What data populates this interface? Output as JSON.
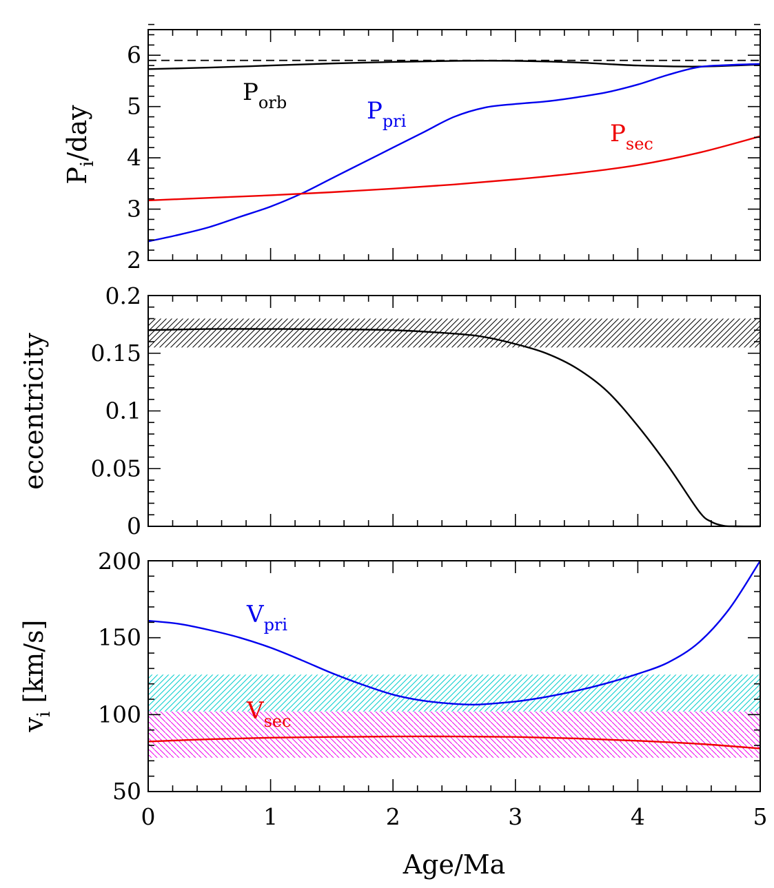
{
  "chart_data": [
    {
      "id": "period",
      "type": "line",
      "xlabel": "Age/Ma",
      "ylabel": {
        "main": "P",
        "sub": "i",
        "rest": "/day"
      },
      "xlim": [
        0,
        5
      ],
      "ylim": [
        2,
        6.5
      ],
      "xticks": [
        0,
        1,
        2,
        3,
        4,
        5
      ],
      "xtick_labels": [
        "0",
        "1",
        "2",
        "3",
        "4",
        "5"
      ],
      "yticks": [
        2,
        3,
        4,
        5,
        6
      ],
      "ytick_labels": [
        "2",
        "3",
        "4",
        "5",
        "6"
      ],
      "hlines": [
        {
          "y": 5.9,
          "style": "dashed",
          "color": "#000000"
        }
      ],
      "series": [
        {
          "name": "P_orb",
          "color": "#000000",
          "label": {
            "main": "P",
            "sub": "orb"
          },
          "x": [
            0,
            0.5,
            1,
            1.5,
            2,
            2.5,
            3,
            3.5,
            4,
            4.5,
            5
          ],
          "y": [
            5.73,
            5.76,
            5.8,
            5.84,
            5.87,
            5.89,
            5.89,
            5.86,
            5.8,
            5.78,
            5.82
          ]
        },
        {
          "name": "P_pri",
          "color": "#0000ee",
          "label": {
            "main": "P",
            "sub": "pri"
          },
          "x": [
            0,
            0.25,
            0.5,
            0.75,
            1,
            1.25,
            1.5,
            1.75,
            2,
            2.25,
            2.5,
            2.75,
            3,
            3.25,
            3.5,
            3.75,
            4,
            4.25,
            4.5,
            4.75,
            5
          ],
          "y": [
            2.37,
            2.5,
            2.65,
            2.85,
            3.05,
            3.3,
            3.6,
            3.9,
            4.2,
            4.5,
            4.8,
            4.98,
            5.05,
            5.1,
            5.18,
            5.28,
            5.43,
            5.62,
            5.77,
            5.81,
            5.83
          ]
        },
        {
          "name": "P_sec",
          "color": "#ee0000",
          "label": {
            "main": "P",
            "sub": "sec"
          },
          "x": [
            0,
            0.5,
            1,
            1.5,
            2,
            2.5,
            3,
            3.5,
            4,
            4.5,
            5
          ],
          "y": [
            3.17,
            3.22,
            3.27,
            3.33,
            3.4,
            3.48,
            3.58,
            3.7,
            3.86,
            4.1,
            4.42
          ]
        }
      ]
    },
    {
      "id": "eccentricity",
      "type": "line",
      "xlabel": "Age/Ma",
      "ylabel": {
        "main": "eccentricity"
      },
      "xlim": [
        0,
        5
      ],
      "ylim": [
        0,
        0.2
      ],
      "xticks": [
        0,
        1,
        2,
        3,
        4,
        5
      ],
      "xtick_labels": [
        "0",
        "1",
        "2",
        "3",
        "4",
        "5"
      ],
      "yticks": [
        0,
        0.05,
        0.1,
        0.15,
        0.2
      ],
      "ytick_labels": [
        "0",
        "0.05",
        "0.1",
        "0.15",
        "0.2"
      ],
      "bands": [
        {
          "y0": 0.155,
          "y1": 0.18,
          "color": "#000000",
          "hatch": "diagonal"
        }
      ],
      "series": [
        {
          "name": "eccentricity",
          "color": "#000000",
          "x": [
            0,
            0.5,
            1,
            1.5,
            2,
            2.5,
            2.75,
            3,
            3.25,
            3.5,
            3.75,
            4,
            4.25,
            4.5,
            4.6,
            4.7,
            4.8,
            5
          ],
          "y": [
            0.17,
            0.171,
            0.171,
            0.1708,
            0.17,
            0.167,
            0.164,
            0.158,
            0.15,
            0.137,
            0.117,
            0.087,
            0.052,
            0.013,
            0.004,
            0.0005,
            0,
            0
          ]
        }
      ]
    },
    {
      "id": "velocity",
      "type": "line",
      "xlabel": "Age/Ma",
      "ylabel": {
        "main": "v",
        "sub": "i",
        "rest": " [km/s]"
      },
      "xlim": [
        0,
        5
      ],
      "ylim": [
        50,
        200
      ],
      "xticks": [
        0,
        1,
        2,
        3,
        4,
        5
      ],
      "xtick_labels": [
        "0",
        "1",
        "2",
        "3",
        "4",
        "5"
      ],
      "yticks": [
        50,
        100,
        150,
        200
      ],
      "ytick_labels": [
        "50",
        "100",
        "150",
        "200"
      ],
      "bands": [
        {
          "y0": 102,
          "y1": 126,
          "color": "#00cccc",
          "hatch": "diagonal"
        },
        {
          "y0": 72,
          "y1": 102,
          "color": "#ee00ee",
          "hatch": "antidiagonal"
        }
      ],
      "series": [
        {
          "name": "V_pri",
          "color": "#0000ee",
          "label": {
            "main": "V",
            "sub": "pri"
          },
          "x": [
            0,
            0.25,
            0.5,
            0.75,
            1,
            1.25,
            1.5,
            1.75,
            2,
            2.25,
            2.5,
            2.65,
            2.75,
            3,
            3.25,
            3.5,
            3.75,
            4,
            4.25,
            4.5,
            4.75,
            5
          ],
          "y": [
            161,
            159,
            155,
            150,
            143.5,
            135.5,
            127,
            119.5,
            113,
            109,
            107,
            106.5,
            106.8,
            108.5,
            111.5,
            115.5,
            120.5,
            126.5,
            134,
            147,
            169,
            200
          ]
        },
        {
          "name": "V_sec",
          "color": "#ee0000",
          "label": {
            "main": "V",
            "sub": "sec"
          },
          "x": [
            0,
            0.5,
            1,
            1.5,
            2,
            2.5,
            3,
            3.5,
            4,
            4.5,
            5
          ],
          "y": [
            82.5,
            84,
            85,
            85.5,
            85.8,
            85.8,
            85.5,
            84.5,
            83,
            81,
            78
          ]
        }
      ]
    }
  ]
}
